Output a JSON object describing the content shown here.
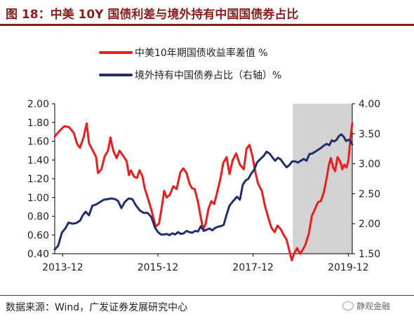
{
  "header": {
    "title": "图 18：中美 10Y 国债利差与境外持有中国国债券占比"
  },
  "footer": {
    "source": "数据来源：Wind，广发证券发展研究中心",
    "watermark": "静观金融"
  },
  "colors": {
    "spread": "#ee1c1c",
    "holding": "#1f2f6b",
    "shade": "#d3d3d3",
    "title": "#8b1c1c"
  },
  "chart_data": {
    "type": "line",
    "legend": [
      "中美10年期国债收益率差值 %",
      "境外持有中国债券占比（右轴）%"
    ],
    "legend_position": "top",
    "grid": false,
    "x_range": [
      2013.75,
      2020.0
    ],
    "x_ticks": [
      {
        "label": "2013-12",
        "x": 2013.917
      },
      {
        "label": "2015-12",
        "x": 2015.917
      },
      {
        "label": "2017-12",
        "x": 2017.917
      },
      {
        "label": "2019-12",
        "x": 2019.917
      }
    ],
    "y_left": {
      "min": 0.4,
      "max": 2.0,
      "ticks": [
        "0.40",
        "0.60",
        "0.80",
        "1.00",
        "1.20",
        "1.40",
        "1.60",
        "1.80",
        "2.00"
      ]
    },
    "y_right": {
      "min": 1.5,
      "max": 4.0,
      "ticks": [
        "1.50",
        "2.00",
        "2.50",
        "3.00",
        "3.50",
        "4.00"
      ]
    },
    "shaded_region": {
      "x_start": 2018.75,
      "x_end": 2020.0
    },
    "series": [
      {
        "name": "中美10年期国债收益率差值 %",
        "axis": "left",
        "points": [
          [
            2013.75,
            1.65
          ],
          [
            2013.85,
            1.71
          ],
          [
            2013.95,
            1.76
          ],
          [
            2014.05,
            1.75
          ],
          [
            2014.15,
            1.69
          ],
          [
            2014.22,
            1.57
          ],
          [
            2014.28,
            1.53
          ],
          [
            2014.36,
            1.65
          ],
          [
            2014.42,
            1.79
          ],
          [
            2014.47,
            1.58
          ],
          [
            2014.55,
            1.5
          ],
          [
            2014.62,
            1.43
          ],
          [
            2014.66,
            1.26
          ],
          [
            2014.73,
            1.3
          ],
          [
            2014.8,
            1.44
          ],
          [
            2014.87,
            1.5
          ],
          [
            2014.92,
            1.64
          ],
          [
            2014.98,
            1.5
          ],
          [
            2015.05,
            1.42
          ],
          [
            2015.11,
            1.5
          ],
          [
            2015.18,
            1.45
          ],
          [
            2015.26,
            1.39
          ],
          [
            2015.31,
            1.24
          ],
          [
            2015.35,
            1.29
          ],
          [
            2015.42,
            1.22
          ],
          [
            2015.48,
            1.21
          ],
          [
            2015.53,
            1.29
          ],
          [
            2015.59,
            1.23
          ],
          [
            2015.64,
            1.1
          ],
          [
            2015.72,
            0.97
          ],
          [
            2015.79,
            0.85
          ],
          [
            2015.87,
            0.69
          ],
          [
            2015.94,
            0.72
          ],
          [
            2016.0,
            0.9
          ],
          [
            2016.05,
            1.07
          ],
          [
            2016.1,
            1.0
          ],
          [
            2016.17,
            1.03
          ],
          [
            2016.24,
            1.12
          ],
          [
            2016.31,
            1.09
          ],
          [
            2016.39,
            1.27
          ],
          [
            2016.45,
            1.31
          ],
          [
            2016.52,
            1.26
          ],
          [
            2016.58,
            1.15
          ],
          [
            2016.63,
            1.1
          ],
          [
            2016.69,
            1.09
          ],
          [
            2016.76,
            0.95
          ],
          [
            2016.82,
            0.78
          ],
          [
            2016.87,
            0.66
          ],
          [
            2016.92,
            0.72
          ],
          [
            2016.98,
            0.88
          ],
          [
            2017.04,
            0.96
          ],
          [
            2017.1,
            0.93
          ],
          [
            2017.16,
            1.05
          ],
          [
            2017.23,
            1.2
          ],
          [
            2017.29,
            1.37
          ],
          [
            2017.36,
            1.43
          ],
          [
            2017.42,
            1.25
          ],
          [
            2017.49,
            1.4
          ],
          [
            2017.56,
            1.47
          ],
          [
            2017.64,
            1.35
          ],
          [
            2017.72,
            1.3
          ],
          [
            2017.78,
            1.52
          ],
          [
            2017.84,
            1.56
          ],
          [
            2017.9,
            1.45
          ],
          [
            2017.96,
            1.28
          ],
          [
            2018.02,
            1.15
          ],
          [
            2018.1,
            1.07
          ],
          [
            2018.17,
            0.9
          ],
          [
            2018.24,
            0.78
          ],
          [
            2018.3,
            0.68
          ],
          [
            2018.37,
            0.63
          ],
          [
            2018.43,
            0.7
          ],
          [
            2018.5,
            0.66
          ],
          [
            2018.56,
            0.6
          ],
          [
            2018.62,
            0.55
          ],
          [
            2018.68,
            0.43
          ],
          [
            2018.73,
            0.33
          ],
          [
            2018.78,
            0.4
          ],
          [
            2018.84,
            0.46
          ],
          [
            2018.9,
            0.4
          ],
          [
            2018.96,
            0.44
          ],
          [
            2019.02,
            0.5
          ],
          [
            2019.09,
            0.62
          ],
          [
            2019.15,
            0.8
          ],
          [
            2019.22,
            0.88
          ],
          [
            2019.28,
            0.95
          ],
          [
            2019.34,
            0.96
          ],
          [
            2019.4,
            1.05
          ],
          [
            2019.46,
            1.2
          ],
          [
            2019.51,
            1.35
          ],
          [
            2019.55,
            1.42
          ],
          [
            2019.6,
            1.32
          ],
          [
            2019.64,
            1.28
          ],
          [
            2019.69,
            1.43
          ],
          [
            2019.75,
            1.38
          ],
          [
            2019.79,
            1.3
          ],
          [
            2019.83,
            1.35
          ],
          [
            2019.88,
            1.32
          ],
          [
            2019.92,
            1.4
          ],
          [
            2019.96,
            1.62
          ],
          [
            2020.0,
            1.79
          ]
        ]
      },
      {
        "name": "境外持有中国债券占比（右轴）%",
        "axis": "right",
        "points": [
          [
            2013.75,
            1.57
          ],
          [
            2013.82,
            1.63
          ],
          [
            2013.9,
            1.85
          ],
          [
            2013.98,
            1.93
          ],
          [
            2014.04,
            2.02
          ],
          [
            2014.12,
            2.0
          ],
          [
            2014.2,
            2.01
          ],
          [
            2014.28,
            2.05
          ],
          [
            2014.34,
            2.14
          ],
          [
            2014.4,
            2.2
          ],
          [
            2014.47,
            2.14
          ],
          [
            2014.54,
            2.3
          ],
          [
            2014.62,
            2.32
          ],
          [
            2014.7,
            2.36
          ],
          [
            2014.78,
            2.4
          ],
          [
            2014.86,
            2.41
          ],
          [
            2014.94,
            2.42
          ],
          [
            2015.02,
            2.41
          ],
          [
            2015.08,
            2.38
          ],
          [
            2015.15,
            2.26
          ],
          [
            2015.22,
            2.36
          ],
          [
            2015.3,
            2.42
          ],
          [
            2015.38,
            2.41
          ],
          [
            2015.46,
            2.3
          ],
          [
            2015.54,
            2.22
          ],
          [
            2015.62,
            2.18
          ],
          [
            2015.7,
            2.18
          ],
          [
            2015.78,
            2.11
          ],
          [
            2015.86,
            1.93
          ],
          [
            2015.92,
            1.86
          ],
          [
            2015.98,
            1.82
          ],
          [
            2016.04,
            1.82
          ],
          [
            2016.1,
            1.83
          ],
          [
            2016.16,
            1.81
          ],
          [
            2016.22,
            1.84
          ],
          [
            2016.28,
            1.82
          ],
          [
            2016.34,
            1.86
          ],
          [
            2016.4,
            1.83
          ],
          [
            2016.46,
            1.84
          ],
          [
            2016.52,
            1.88
          ],
          [
            2016.58,
            1.86
          ],
          [
            2016.64,
            1.85
          ],
          [
            2016.7,
            1.88
          ],
          [
            2016.76,
            1.87
          ],
          [
            2016.82,
            1.96
          ],
          [
            2016.88,
            1.88
          ],
          [
            2016.94,
            1.9
          ],
          [
            2017.0,
            1.92
          ],
          [
            2017.06,
            1.89
          ],
          [
            2017.12,
            1.93
          ],
          [
            2017.18,
            1.95
          ],
          [
            2017.24,
            1.96
          ],
          [
            2017.3,
            1.98
          ],
          [
            2017.36,
            2.15
          ],
          [
            2017.42,
            2.3
          ],
          [
            2017.5,
            2.38
          ],
          [
            2017.58,
            2.45
          ],
          [
            2017.64,
            2.4
          ],
          [
            2017.7,
            2.65
          ],
          [
            2017.76,
            2.72
          ],
          [
            2017.82,
            2.75
          ],
          [
            2017.88,
            2.84
          ],
          [
            2017.94,
            2.9
          ],
          [
            2018.0,
            3.02
          ],
          [
            2018.07,
            3.08
          ],
          [
            2018.14,
            3.13
          ],
          [
            2018.2,
            3.2
          ],
          [
            2018.26,
            3.17
          ],
          [
            2018.32,
            3.11
          ],
          [
            2018.38,
            3.05
          ],
          [
            2018.44,
            3.1
          ],
          [
            2018.5,
            3.07
          ],
          [
            2018.56,
            3.0
          ],
          [
            2018.62,
            2.94
          ],
          [
            2018.68,
            2.98
          ],
          [
            2018.74,
            3.04
          ],
          [
            2018.8,
            3.04
          ],
          [
            2018.86,
            3.02
          ],
          [
            2018.92,
            3.05
          ],
          [
            2018.98,
            3.08
          ],
          [
            2019.04,
            3.05
          ],
          [
            2019.1,
            3.16
          ],
          [
            2019.16,
            3.17
          ],
          [
            2019.22,
            3.2
          ],
          [
            2019.28,
            3.23
          ],
          [
            2019.34,
            3.26
          ],
          [
            2019.4,
            3.3
          ],
          [
            2019.46,
            3.33
          ],
          [
            2019.52,
            3.31
          ],
          [
            2019.57,
            3.39
          ],
          [
            2019.62,
            3.37
          ],
          [
            2019.67,
            3.4
          ],
          [
            2019.72,
            3.46
          ],
          [
            2019.77,
            3.49
          ],
          [
            2019.82,
            3.45
          ],
          [
            2019.87,
            3.38
          ],
          [
            2019.92,
            3.4
          ],
          [
            2019.96,
            3.38
          ],
          [
            2020.0,
            3.32
          ]
        ]
      }
    ]
  }
}
